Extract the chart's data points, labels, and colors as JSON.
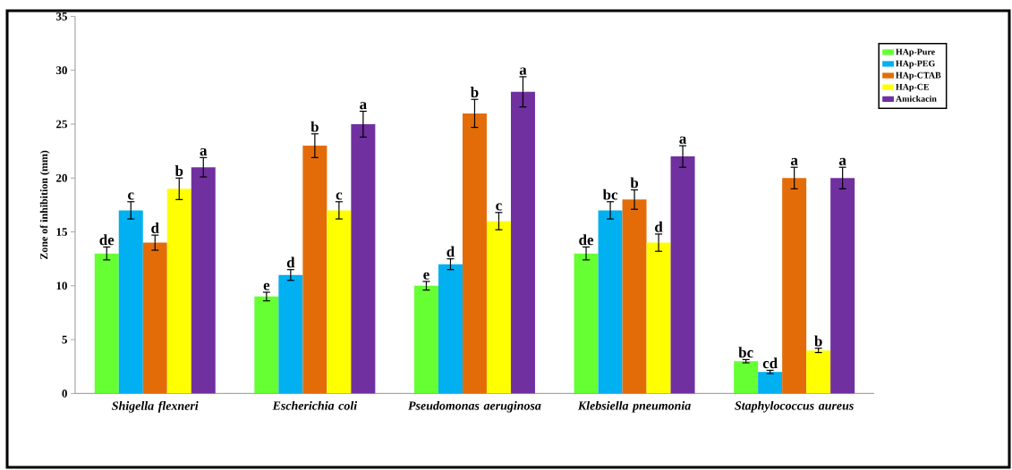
{
  "chart_data": {
    "type": "bar",
    "ylabel": "Zone of inhibition (mm)",
    "categories": [
      "Shigella flexneri",
      "Escherichia coli",
      "Pseudomonas aeruginosa",
      "Klebsiella pneumonia",
      "Staphylococcus aureus"
    ],
    "ylim": [
      0,
      35
    ],
    "yticks": [
      0,
      5,
      10,
      15,
      20,
      25,
      30,
      35
    ],
    "grid": false,
    "legend": "right",
    "series": [
      {
        "name": "HAp-Pure",
        "color": "#66ff33",
        "values": [
          13,
          9,
          10,
          13,
          3
        ],
        "errors": [
          0.6,
          0.4,
          0.4,
          0.6,
          0.15
        ],
        "value_labels": [
          "de",
          "e",
          "e",
          "de",
          "bc"
        ]
      },
      {
        "name": "HAp-PEG",
        "color": "#00b0f0",
        "values": [
          17,
          11,
          12,
          17,
          2
        ],
        "errors": [
          0.8,
          0.5,
          0.5,
          0.8,
          0.15
        ],
        "value_labels": [
          "c",
          "d",
          "d",
          "bc",
          "cd"
        ]
      },
      {
        "name": "HAp-CTAB",
        "color": "#e36c09",
        "values": [
          14,
          23,
          26,
          18,
          20
        ],
        "errors": [
          0.7,
          1.1,
          1.3,
          0.9,
          1.0
        ],
        "value_labels": [
          "d",
          "b",
          "b",
          "b",
          "a"
        ]
      },
      {
        "name": "HAp-CE",
        "color": "#ffff00",
        "values": [
          19,
          17,
          16,
          14,
          4
        ],
        "errors": [
          1.0,
          0.8,
          0.8,
          0.8,
          0.2
        ],
        "value_labels": [
          "b",
          "c",
          "c",
          "d",
          "b"
        ]
      },
      {
        "name": "Amickacin",
        "color": "#7030a0",
        "values": [
          21,
          25,
          28,
          22,
          20
        ],
        "errors": [
          0.9,
          1.2,
          1.4,
          1.0,
          1.0
        ],
        "value_labels": [
          "a",
          "a",
          "a",
          "a",
          "a"
        ]
      }
    ]
  }
}
